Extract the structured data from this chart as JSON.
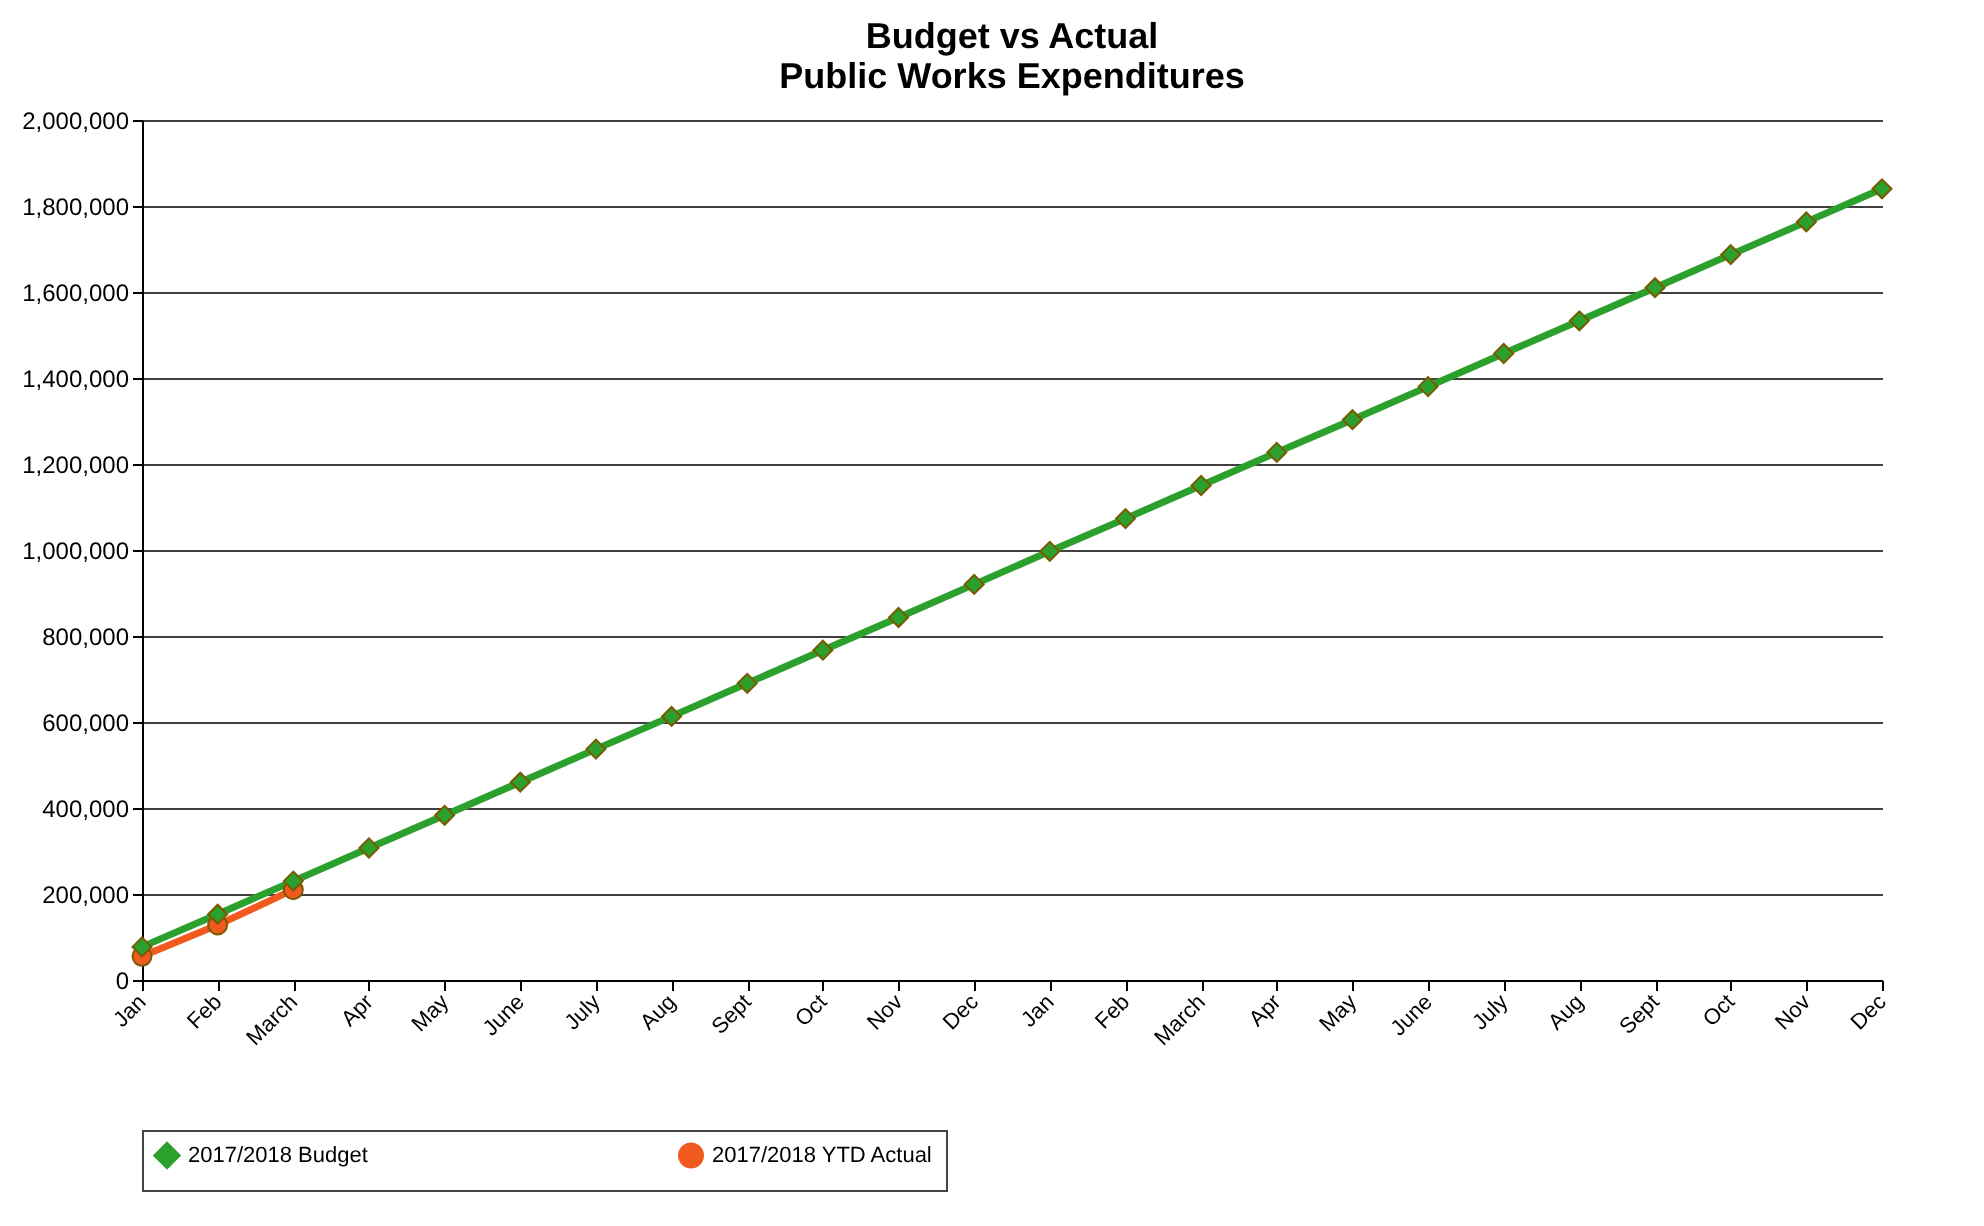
{
  "chart_data": {
    "type": "line",
    "title": "Budget vs Actual",
    "subtitle": "Public Works Expenditures",
    "categories": [
      "Jan",
      "Feb",
      "March",
      "Apr",
      "May",
      "June",
      "July",
      "Aug",
      "Sept",
      "Oct",
      "Nov",
      "Dec",
      "Jan",
      "Feb",
      "March",
      "Apr",
      "May",
      "June",
      "July",
      "Aug",
      "Sept",
      "Oct",
      "Nov",
      "Dec"
    ],
    "series": [
      {
        "name": "2017/2018 Budget",
        "color": "#2ca02c",
        "marker": "diamond",
        "values": [
          77000,
          153000,
          230000,
          307000,
          383000,
          460000,
          537000,
          613000,
          690000,
          767000,
          843000,
          920000,
          997000,
          1073000,
          1150000,
          1227000,
          1303000,
          1380000,
          1457000,
          1533000,
          1610000,
          1687000,
          1763000,
          1840000
        ]
      },
      {
        "name": "2017/2018 YTD Actual",
        "color": "#f05a1e",
        "marker": "circle",
        "values": [
          55000,
          128000,
          210000,
          null,
          null,
          null,
          null,
          null,
          null,
          null,
          null,
          null,
          null,
          null,
          null,
          null,
          null,
          null,
          null,
          null,
          null,
          null,
          null,
          null
        ]
      }
    ],
    "ylim": [
      0,
      2000000
    ],
    "yticks": [
      0,
      {
        "value": 200000,
        "label": "200,000"
      },
      {
        "value": 400000,
        "label": "400,000"
      },
      {
        "value": 600000,
        "label": "600,000"
      },
      {
        "value": 800000,
        "label": "800,000"
      },
      {
        "value": 1000000,
        "label": "1,000,000"
      },
      {
        "value": 1200000,
        "label": "1,200,000"
      },
      {
        "value": 1400000,
        "label": "1,400,000"
      },
      {
        "value": 1600000,
        "label": "1,600,000"
      },
      {
        "value": 1800000,
        "label": "1,800,000"
      },
      {
        "value": 2000000,
        "label": "2,000,000"
      }
    ],
    "grid": "y",
    "legend": "bottom",
    "line_style": "solid"
  }
}
